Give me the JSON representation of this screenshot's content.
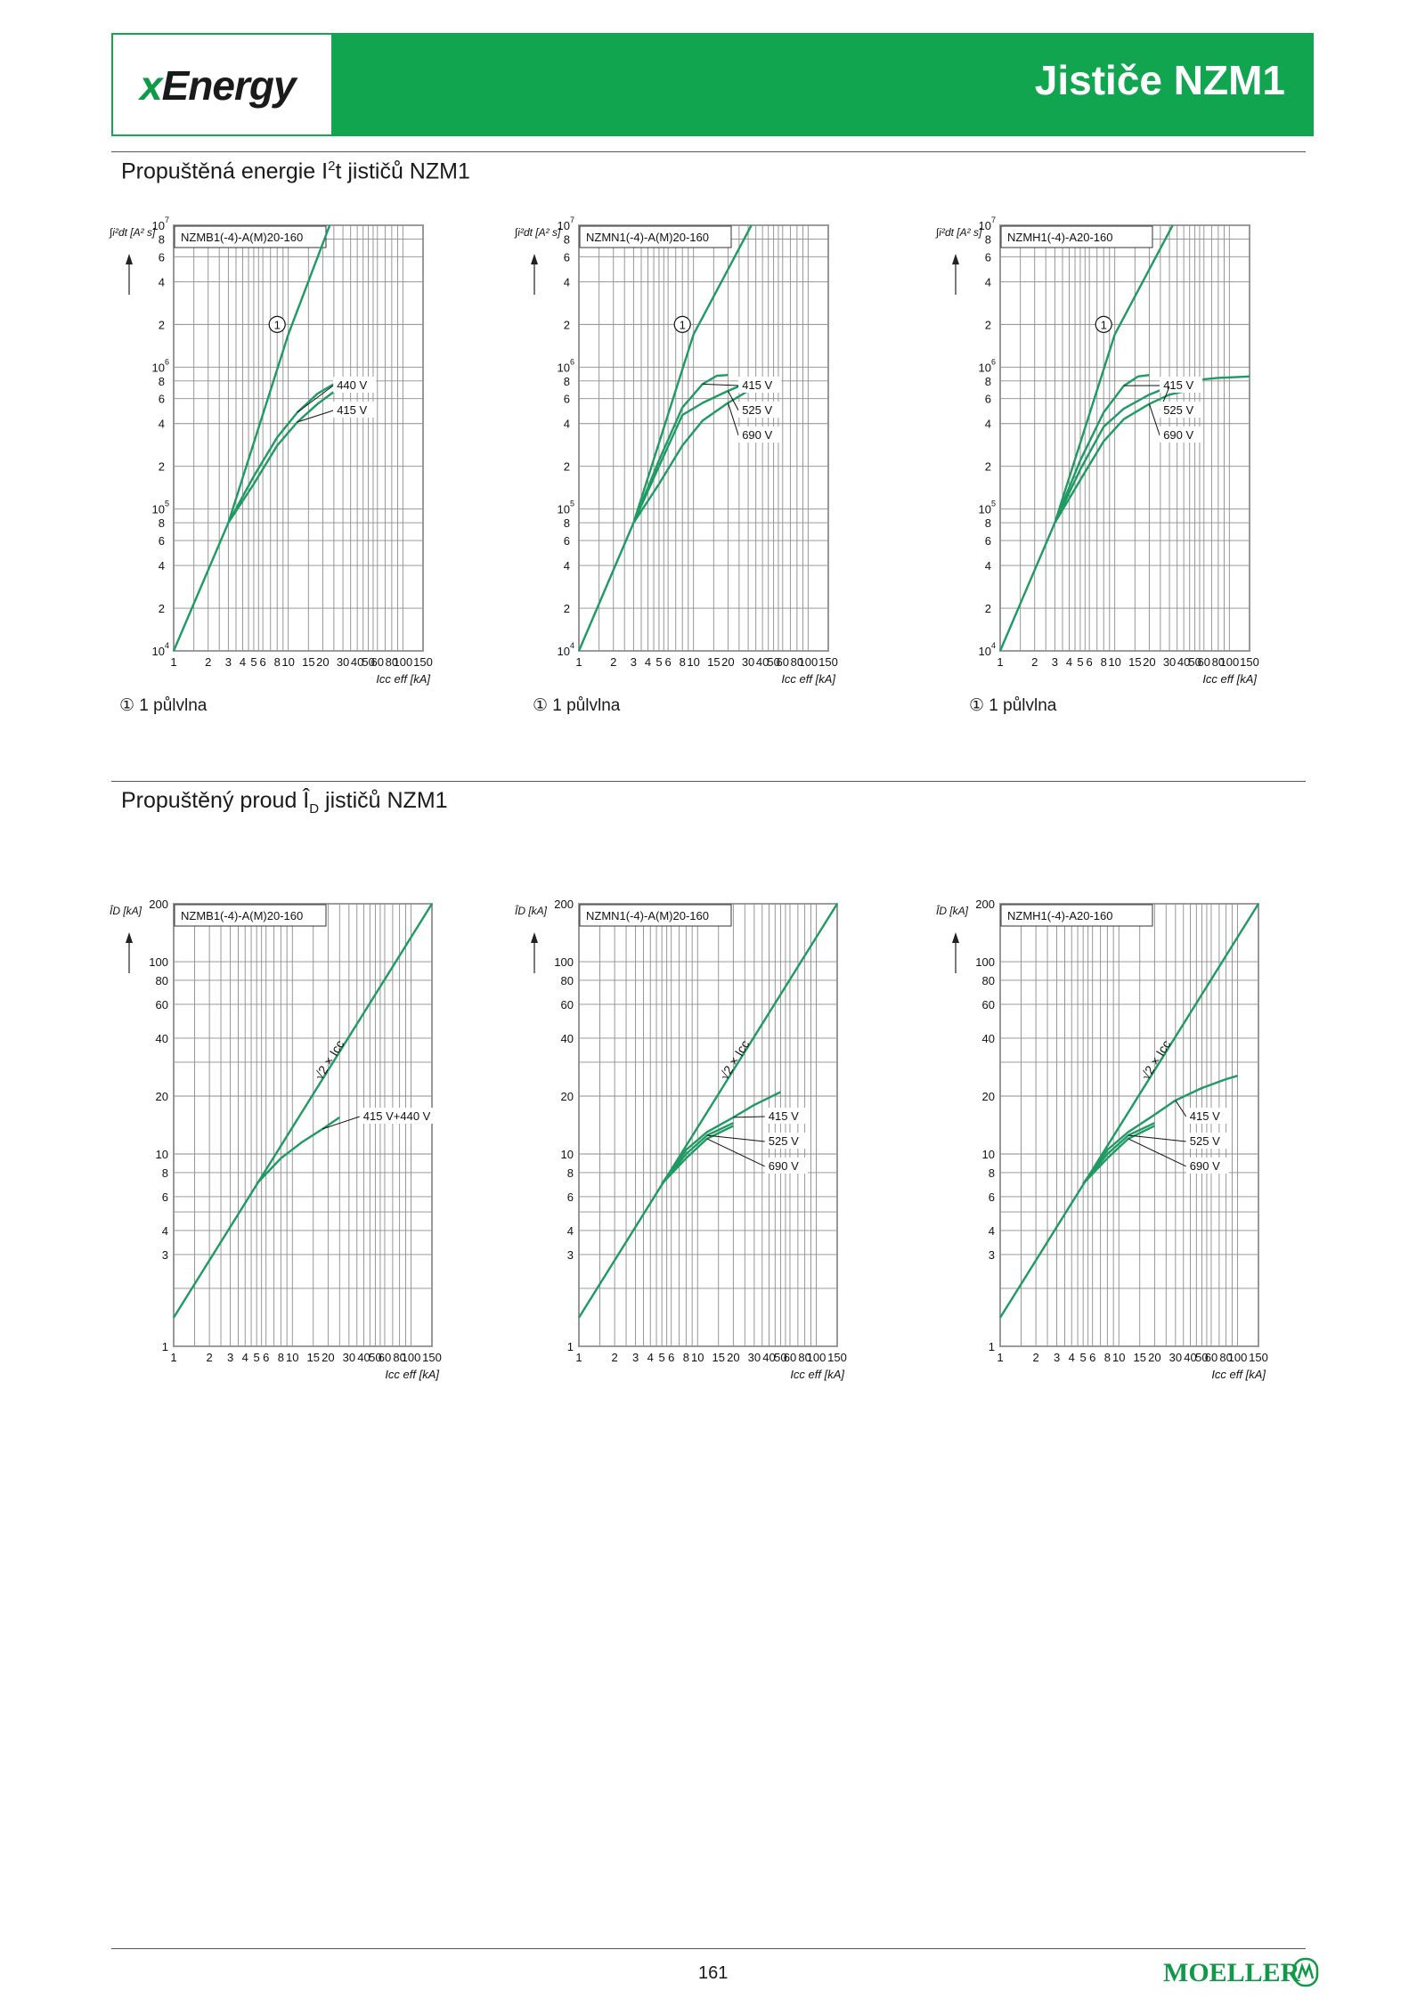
{
  "header": {
    "logo_x": "x",
    "logo_rest": "Energy",
    "title": "Jističe NZM1"
  },
  "section1": {
    "title_a": "Propuštěná energie I",
    "title_sup": "2",
    "title_b": "t jističů NZM1"
  },
  "section2": {
    "title": "Propuštěný proud Î",
    "title_sub": "D",
    "title_b": " jističů NZM1"
  },
  "footnote": "① 1 půlvlna",
  "page_number": "161",
  "brand": "MOELLER",
  "colors": {
    "accent": "#12a550",
    "curve": "#1e9a62",
    "grid": "#8c8c8c"
  },
  "chart_data": [
    {
      "type": "line",
      "title": "NZMB1(-4)-A(M)20-160",
      "ylabel": "∫i²dt [A² s]",
      "xlabel": "Icc eff [kA]",
      "xscale": "log",
      "yscale": "log",
      "xlim": [
        1,
        150
      ],
      "ylim": [
        10000,
        10000000
      ],
      "x_ticks": [
        "1",
        "2",
        "3",
        "4",
        "5",
        "6",
        "8",
        "10",
        "15",
        "20",
        "30",
        "40",
        "50",
        "60",
        "80",
        "100",
        "150"
      ],
      "y_ticks": [
        [
          "10",
          "4"
        ],
        [
          "2",
          ""
        ],
        [
          "4",
          ""
        ],
        [
          "6",
          ""
        ],
        [
          "8",
          ""
        ],
        [
          "10",
          "5"
        ],
        [
          "2",
          ""
        ],
        [
          "4",
          ""
        ],
        [
          "6",
          ""
        ],
        [
          "8",
          ""
        ],
        [
          "10",
          "6"
        ],
        [
          "2",
          ""
        ],
        [
          "4",
          ""
        ],
        [
          "6",
          ""
        ],
        [
          "8",
          ""
        ],
        [
          "10",
          "7"
        ]
      ],
      "series": [
        {
          "name": "①",
          "x": [
            1,
            3,
            10,
            23
          ],
          "y": [
            10000,
            80000,
            1700000,
            10000000
          ]
        },
        {
          "name": "440 V",
          "x": [
            3,
            5,
            8,
            12,
            18,
            25
          ],
          "y": [
            80000,
            170000,
            320000,
            480000,
            650000,
            760000
          ]
        },
        {
          "name": "415 V",
          "x": [
            3,
            5,
            8,
            12,
            18,
            25
          ],
          "y": [
            80000,
            150000,
            280000,
            410000,
            550000,
            670000
          ]
        }
      ]
    },
    {
      "type": "line",
      "title": "NZMN1(-4)-A(M)20-160",
      "ylabel": "∫i²dt [A² s]",
      "xlabel": "Icc eff [kA]",
      "xscale": "log",
      "yscale": "log",
      "xlim": [
        1,
        150
      ],
      "ylim": [
        10000,
        10000000
      ],
      "x_ticks": [
        "1",
        "2",
        "3",
        "4",
        "5",
        "6",
        "8",
        "10",
        "15",
        "20",
        "30",
        "40",
        "50",
        "60",
        "80",
        "100",
        "150"
      ],
      "y_ticks": [
        [
          "10",
          "4"
        ],
        [
          "2",
          ""
        ],
        [
          "4",
          ""
        ],
        [
          "6",
          ""
        ],
        [
          "8",
          ""
        ],
        [
          "10",
          "5"
        ],
        [
          "2",
          ""
        ],
        [
          "4",
          ""
        ],
        [
          "6",
          ""
        ],
        [
          "8",
          ""
        ],
        [
          "10",
          "6"
        ],
        [
          "2",
          ""
        ],
        [
          "4",
          ""
        ],
        [
          "6",
          ""
        ],
        [
          "8",
          ""
        ],
        [
          "10",
          "7"
        ]
      ],
      "series": [
        {
          "name": "①",
          "x": [
            1,
            3,
            10,
            32
          ],
          "y": [
            10000,
            80000,
            1700000,
            10000000
          ]
        },
        {
          "name": "415 V",
          "x": [
            3,
            5,
            8,
            12,
            16,
            20
          ],
          "y": [
            80000,
            220000,
            520000,
            760000,
            870000,
            880000
          ]
        },
        {
          "name": "525 V",
          "x": [
            3,
            5,
            8,
            12,
            20,
            30,
            50
          ],
          "y": [
            80000,
            200000,
            460000,
            560000,
            680000,
            780000,
            830000
          ]
        },
        {
          "name": "690 V",
          "x": [
            3,
            5,
            8,
            12,
            20,
            30,
            50
          ],
          "y": [
            80000,
            150000,
            280000,
            420000,
            560000,
            680000,
            760000
          ]
        }
      ]
    },
    {
      "type": "line",
      "title": "NZMH1(-4)-A20-160",
      "ylabel": "∫i²dt [A² s]",
      "xlabel": "Icc eff [kA]",
      "xscale": "log",
      "yscale": "log",
      "xlim": [
        1,
        150
      ],
      "ylim": [
        10000,
        10000000
      ],
      "x_ticks": [
        "1",
        "2",
        "3",
        "4",
        "5",
        "6",
        "8",
        "10",
        "15",
        "20",
        "30",
        "40",
        "50",
        "60",
        "80",
        "100",
        "150"
      ],
      "y_ticks": [
        [
          "10",
          "4"
        ],
        [
          "2",
          ""
        ],
        [
          "4",
          ""
        ],
        [
          "6",
          ""
        ],
        [
          "8",
          ""
        ],
        [
          "10",
          "5"
        ],
        [
          "2",
          ""
        ],
        [
          "4",
          ""
        ],
        [
          "6",
          ""
        ],
        [
          "8",
          ""
        ],
        [
          "10",
          "6"
        ],
        [
          "2",
          ""
        ],
        [
          "4",
          ""
        ],
        [
          "6",
          ""
        ],
        [
          "8",
          ""
        ],
        [
          "10",
          "7"
        ]
      ],
      "series": [
        {
          "name": "①",
          "x": [
            1,
            3,
            10,
            32
          ],
          "y": [
            10000,
            80000,
            1700000,
            10000000
          ]
        },
        {
          "name": "415 V",
          "x": [
            3,
            5,
            8,
            12,
            16,
            20
          ],
          "y": [
            80000,
            220000,
            480000,
            740000,
            860000,
            880000
          ]
        },
        {
          "name": "525 V",
          "x": [
            3,
            5,
            8,
            12,
            20,
            30,
            50,
            80,
            150
          ],
          "y": [
            80000,
            190000,
            380000,
            510000,
            640000,
            730000,
            810000,
            840000,
            860000
          ]
        },
        {
          "name": "690 V",
          "x": [
            3,
            5,
            8,
            12,
            20,
            30,
            50
          ],
          "y": [
            80000,
            160000,
            300000,
            430000,
            550000,
            640000,
            700000
          ]
        }
      ]
    },
    {
      "type": "line",
      "title": "NZMB1(-4)-A(M)20-160",
      "ylabel": "ÎD [kA]",
      "xlabel": "Icc eff [kA]",
      "xscale": "log",
      "yscale": "log",
      "xlim": [
        1,
        150
      ],
      "ylim": [
        1,
        200
      ],
      "x_ticks": [
        "1",
        "2",
        "3",
        "4",
        "5",
        "6",
        "8",
        "10",
        "15",
        "20",
        "30",
        "40",
        "50",
        "60",
        "80",
        "100",
        "150"
      ],
      "y_ticks": [
        "1",
        "3",
        "4",
        "6",
        "8",
        "10",
        "20",
        "40",
        "60",
        "80",
        "100",
        "200"
      ],
      "series": [
        {
          "name": "√2 × Icc",
          "x": [
            1,
            150
          ],
          "y": [
            1.41,
            212
          ]
        },
        {
          "name": "415 V+440 V",
          "x": [
            5,
            8,
            12,
            18,
            25
          ],
          "y": [
            7,
            9.5,
            11.5,
            13.5,
            15.5
          ]
        }
      ]
    },
    {
      "type": "line",
      "title": "NZMN1(-4)-A(M)20-160",
      "ylabel": "ÎD [kA]",
      "xlabel": "Icc eff [kA]",
      "xscale": "log",
      "yscale": "log",
      "xlim": [
        1,
        150
      ],
      "ylim": [
        1,
        200
      ],
      "x_ticks": [
        "1",
        "2",
        "3",
        "4",
        "5",
        "6",
        "8",
        "10",
        "15",
        "20",
        "30",
        "40",
        "50",
        "60",
        "80",
        "100",
        "150"
      ],
      "y_ticks": [
        "1",
        "3",
        "4",
        "6",
        "8",
        "10",
        "20",
        "40",
        "60",
        "80",
        "100",
        "200"
      ],
      "series": [
        {
          "name": "√2 × Icc",
          "x": [
            1,
            150
          ],
          "y": [
            1.41,
            212
          ]
        },
        {
          "name": "415 V",
          "x": [
            5,
            8,
            12,
            20,
            30,
            50
          ],
          "y": [
            7,
            10.5,
            13,
            15.5,
            18,
            21
          ]
        },
        {
          "name": "525 V",
          "x": [
            5,
            8,
            12,
            20
          ],
          "y": [
            7,
            10,
            12.5,
            14.5
          ]
        },
        {
          "name": "690 V",
          "x": [
            5,
            8,
            12,
            20
          ],
          "y": [
            7,
            9.5,
            12,
            14
          ]
        }
      ]
    },
    {
      "type": "line",
      "title": "NZMH1(-4)-A20-160",
      "ylabel": "ÎD [kA]",
      "xlabel": "Icc eff [kA]",
      "xscale": "log",
      "yscale": "log",
      "xlim": [
        1,
        150
      ],
      "ylim": [
        1,
        200
      ],
      "x_ticks": [
        "1",
        "2",
        "3",
        "4",
        "5",
        "6",
        "8",
        "10",
        "15",
        "20",
        "30",
        "40",
        "50",
        "60",
        "80",
        "100",
        "150"
      ],
      "y_ticks": [
        "1",
        "3",
        "4",
        "6",
        "8",
        "10",
        "20",
        "40",
        "60",
        "80",
        "100",
        "200"
      ],
      "series": [
        {
          "name": "√2 × Icc",
          "x": [
            1,
            150
          ],
          "y": [
            1.41,
            212
          ]
        },
        {
          "name": "415 V",
          "x": [
            5,
            8,
            12,
            20,
            30,
            50,
            80,
            100
          ],
          "y": [
            7,
            10.5,
            13,
            16,
            19,
            22,
            24.5,
            25.5
          ]
        },
        {
          "name": "525 V",
          "x": [
            5,
            8,
            12,
            20
          ],
          "y": [
            7,
            10,
            12.5,
            14.5
          ]
        },
        {
          "name": "690 V",
          "x": [
            5,
            8,
            12,
            20
          ],
          "y": [
            7,
            9.5,
            12,
            14
          ]
        }
      ]
    }
  ]
}
